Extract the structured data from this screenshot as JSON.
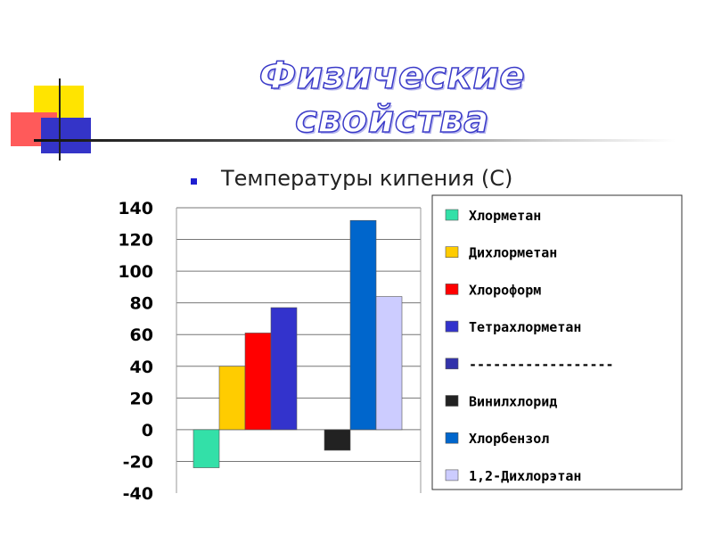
{
  "slide": {
    "title": "Физические свойства",
    "bullet_text": "Температуры кипения (С)"
  },
  "colors": {
    "title_outline": "#3a3ac8",
    "bullet": "#1f1fd0",
    "deco_yellow": "#ffe400",
    "deco_red": "#ff5a5a",
    "deco_blue": "#3434c8"
  },
  "chart_data": {
    "type": "bar",
    "title": "",
    "xlabel": "",
    "ylabel": "",
    "ylim": [
      -40,
      140
    ],
    "yticks": [
      140,
      120,
      100,
      80,
      60,
      40,
      20,
      0,
      -20,
      -40
    ],
    "grid": true,
    "legend_position": "right",
    "categories": [
      "",
      ""
    ],
    "series": [
      {
        "name": "Хлорметан",
        "color": "#33e0a8",
        "values": [
          -24,
          null
        ]
      },
      {
        "name": "Дихлорметан",
        "color": "#ffcc00",
        "values": [
          40,
          null
        ]
      },
      {
        "name": "Хлороформ",
        "color": "#ff0000",
        "values": [
          61,
          null
        ]
      },
      {
        "name": "Тетрахлорметан",
        "color": "#3333cc",
        "values": [
          77,
          null
        ]
      },
      {
        "name": "------------------",
        "color": "#3333aa",
        "values": [
          null,
          null
        ]
      },
      {
        "name": "Винилхлорид",
        "color": "#222222",
        "values": [
          null,
          -13
        ]
      },
      {
        "name": "Хлорбензол",
        "color": "#0066cc",
        "values": [
          null,
          132
        ]
      },
      {
        "name": "1,2-Дихлорэтан",
        "color": "#ccccff",
        "values": [
          null,
          84
        ]
      }
    ]
  }
}
